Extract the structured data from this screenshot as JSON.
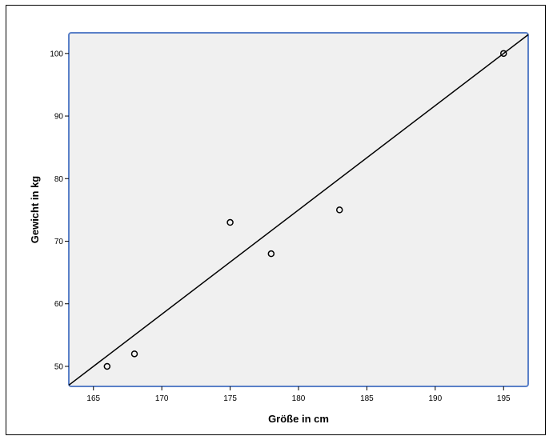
{
  "chart_data": {
    "type": "scatter",
    "title": "",
    "xlabel": "Größe in cm",
    "ylabel": "Gewicht in kg",
    "xlim": [
      163.2,
      196.8
    ],
    "ylim": [
      46.8,
      103.3
    ],
    "x_ticks": [
      165,
      170,
      175,
      180,
      185,
      190,
      195
    ],
    "y_ticks": [
      50,
      60,
      70,
      80,
      90,
      100
    ],
    "points": [
      {
        "x": 166,
        "y": 50
      },
      {
        "x": 168,
        "y": 52
      },
      {
        "x": 175,
        "y": 73
      },
      {
        "x": 178,
        "y": 68
      },
      {
        "x": 183,
        "y": 75
      },
      {
        "x": 195,
        "y": 100
      }
    ],
    "fit_line": {
      "x": [
        163.2,
        196.8
      ],
      "y": [
        47.0,
        103.0
      ]
    },
    "grid": false,
    "legend": "none",
    "colors": {
      "plot_background": "#f0f0f0",
      "plot_border": "#5a80c8",
      "marker": "#000000",
      "line": "#000000"
    }
  }
}
